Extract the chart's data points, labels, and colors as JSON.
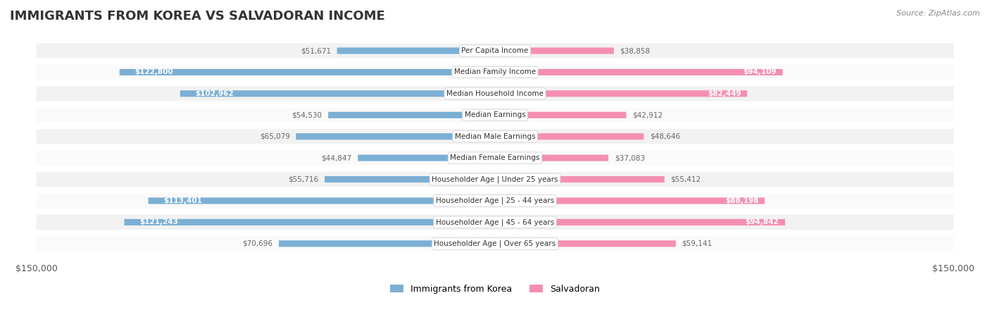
{
  "title": "IMMIGRANTS FROM KOREA VS SALVADORAN INCOME",
  "source": "Source: ZipAtlas.com",
  "categories": [
    "Per Capita Income",
    "Median Family Income",
    "Median Household Income",
    "Median Earnings",
    "Median Male Earnings",
    "Median Female Earnings",
    "Householder Age | Under 25 years",
    "Householder Age | 25 - 44 years",
    "Householder Age | 45 - 64 years",
    "Householder Age | Over 65 years"
  ],
  "korea_values": [
    51671,
    122800,
    102962,
    54530,
    65079,
    44847,
    55716,
    113401,
    121243,
    70696
  ],
  "salvador_values": [
    38858,
    94109,
    82449,
    42912,
    48646,
    37083,
    55412,
    88198,
    94842,
    59141
  ],
  "korea_labels": [
    "$51,671",
    "$122,800",
    "$102,962",
    "$54,530",
    "$65,079",
    "$44,847",
    "$55,716",
    "$113,401",
    "$121,243",
    "$70,696"
  ],
  "salvador_labels": [
    "$38,858",
    "$94,109",
    "$82,449",
    "$42,912",
    "$48,646",
    "$37,083",
    "$55,412",
    "$88,198",
    "$94,842",
    "$59,141"
  ],
  "korea_color": "#7bafd4",
  "salvador_color": "#f48fb1",
  "korea_label_color_inside": "#ffffff",
  "korea_label_color_outside": "#666666",
  "salvador_label_color_inside": "#ffffff",
  "salvador_label_color_outside": "#666666",
  "axis_max": 150000,
  "background_color": "#ffffff",
  "row_bg_color": "#f0f0f0",
  "row_alt_bg_color": "#ffffff",
  "legend_korea": "Immigrants from Korea",
  "legend_salvador": "Salvadoran",
  "korea_inside_threshold": 90000,
  "salvador_inside_threshold": 70000
}
